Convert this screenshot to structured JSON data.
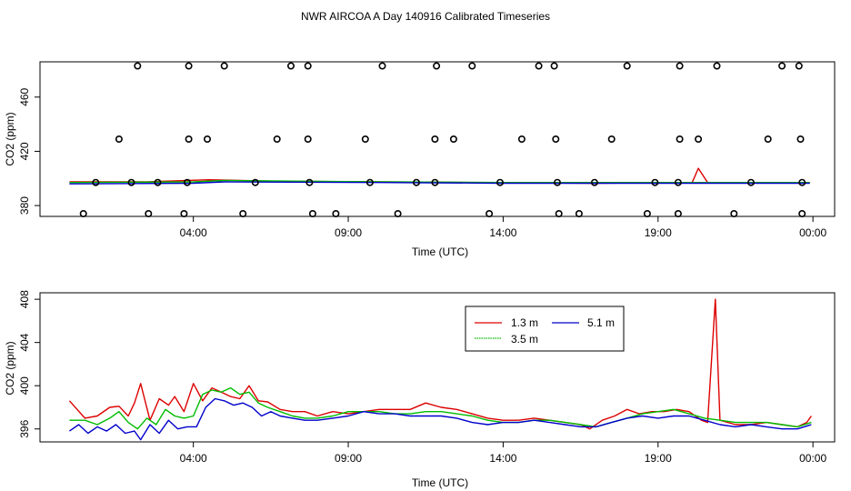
{
  "chart_data": {
    "title": "NWR AIRCOA A  Day 140916  Calibrated Timeseries",
    "series_colors": {
      "1.3 m": "#dd0000",
      "3.5 m": "#00bb00",
      "5.1 m": "#0000cc",
      "extra": "#9900aa",
      "cyan": "#00aaaa"
    },
    "x_tick_labels": [
      "04:00",
      "09:00",
      "14:00",
      "19:00",
      "00:00"
    ],
    "x_tick_hours": [
      4,
      9,
      14,
      19,
      24
    ],
    "panels": [
      {
        "type": "line+scatter",
        "xlabel": "Time (UTC)",
        "ylabel": "CO2 (ppm)",
        "xlim": [
          -0.95,
          24.7
        ],
        "ylim": [
          372,
          486
        ],
        "y_ticks": [
          380,
          420,
          460
        ],
        "calibration_points": {
          "levels": [
            374,
            397,
            429,
            483
          ],
          "hours_by_level": {
            "483": [
              2.2,
              3.85,
              5.0,
              7.15,
              7.7,
              10.1,
              11.85,
              13.0,
              15.15,
              15.65,
              18.0,
              19.7,
              20.9,
              23.0,
              23.55
            ],
            "429": [
              1.6,
              3.85,
              4.45,
              6.7,
              7.7,
              9.55,
              11.8,
              12.4,
              14.6,
              15.7,
              17.5,
              19.7,
              20.3,
              22.55,
              23.6
            ],
            "397": [
              0.85,
              2.0,
              2.85,
              3.8,
              6.0,
              7.75,
              9.7,
              11.2,
              11.8,
              13.9,
              15.75,
              16.95,
              18.9,
              19.65,
              22.0,
              23.65
            ],
            "374": [
              0.45,
              2.55,
              3.7,
              5.6,
              7.85,
              8.6,
              10.6,
              13.55,
              15.8,
              16.45,
              18.65,
              19.65,
              21.45,
              23.65
            ]
          }
        },
        "series": [
          {
            "name": "1.3 m",
            "x": [
              0,
              2.5,
              4.5,
              6.5,
              10,
              13,
              17,
              19.5,
              20.1,
              20.3,
              20.6,
              23.9
            ],
            "values": [
              397.5,
              397.5,
              399,
              398,
              397.5,
              397,
              396.5,
              397,
              397,
              407.5,
              397,
              397
            ]
          },
          {
            "name": "3.5 m",
            "x": [
              0,
              4,
              5,
              10,
              14,
              23.9
            ],
            "values": [
              397,
              397.5,
              398.5,
              397.5,
              397,
              397
            ]
          },
          {
            "name": "5.1 m",
            "x": [
              0,
              4,
              5,
              10,
              14,
              23.9
            ],
            "values": [
              396,
              396.5,
              397.5,
              397,
              396.5,
              396.5
            ]
          }
        ]
      },
      {
        "type": "line",
        "xlabel": "Time (UTC)",
        "ylabel": "CO2 (ppm)",
        "xlim": [
          -0.95,
          24.7
        ],
        "ylim": [
          394.8,
          408.6
        ],
        "y_ticks": [
          396,
          400,
          404,
          408
        ],
        "legend": {
          "position": "top-right",
          "entries": [
            "1.3 m",
            "3.5 m",
            "5.1 m"
          ]
        },
        "series": [
          {
            "name": "1.3 m",
            "x": [
              0,
              0.5,
              0.9,
              1.3,
              1.6,
              1.9,
              2.1,
              2.3,
              2.6,
              2.9,
              3.2,
              3.4,
              3.7,
              4.0,
              4.3,
              4.6,
              4.9,
              5.2,
              5.5,
              5.8,
              6.1,
              6.4,
              6.8,
              7.2,
              7.6,
              8.0,
              8.5,
              9.0,
              9.5,
              10.0,
              10.5,
              11.0,
              11.5,
              12.0,
              12.5,
              13.0,
              13.5,
              14.0,
              14.5,
              15.0,
              15.5,
              16.0,
              16.5,
              16.8,
              17.2,
              17.6,
              18.0,
              18.4,
              18.8,
              19.2,
              19.6,
              20.0,
              20.4,
              20.6,
              20.85,
              21.0,
              21.5,
              22.0,
              22.5,
              23.0,
              23.5,
              23.8,
              23.95
            ],
            "values": [
              398.6,
              397.0,
              397.2,
              398.0,
              398.1,
              397.2,
              398.4,
              400.2,
              396.8,
              398.8,
              398.2,
              399.0,
              397.6,
              400.2,
              398.6,
              399.8,
              399.4,
              399.0,
              398.8,
              400.0,
              398.6,
              398.5,
              397.8,
              397.6,
              397.6,
              397.2,
              397.6,
              397.4,
              397.6,
              397.8,
              397.8,
              397.8,
              398.4,
              398.0,
              397.8,
              397.4,
              397.0,
              396.8,
              396.8,
              397.0,
              396.8,
              396.6,
              396.4,
              396.0,
              396.8,
              397.2,
              397.8,
              397.4,
              397.6,
              397.6,
              397.8,
              397.6,
              396.8,
              396.6,
              408.0,
              396.8,
              396.4,
              396.4,
              396.6,
              396.4,
              396.2,
              396.6,
              397.2
            ]
          },
          {
            "name": "3.5 m",
            "x": [
              0,
              0.5,
              0.9,
              1.3,
              1.6,
              1.9,
              2.2,
              2.5,
              2.8,
              3.1,
              3.4,
              3.7,
              4.0,
              4.3,
              4.6,
              4.9,
              5.2,
              5.5,
              5.8,
              6.1,
              6.4,
              6.8,
              7.2,
              7.6,
              8.0,
              8.5,
              9.0,
              9.5,
              10.0,
              10.5,
              11.0,
              11.5,
              12.0,
              12.5,
              13.0,
              13.5,
              14.0,
              14.5,
              15.0,
              15.5,
              16.0,
              16.5,
              17.0,
              17.5,
              18.0,
              18.5,
              19.0,
              19.5,
              20.0,
              20.5,
              21.0,
              21.5,
              22.0,
              22.5,
              23.0,
              23.5,
              23.95
            ],
            "values": [
              396.8,
              396.8,
              396.4,
              397.0,
              397.6,
              396.6,
              396.0,
              397.0,
              396.4,
              397.8,
              397.2,
              397.0,
              397.2,
              399.2,
              399.6,
              399.4,
              399.8,
              399.2,
              399.4,
              398.4,
              398.0,
              397.6,
              397.2,
              397.0,
              397.0,
              397.2,
              397.6,
              397.6,
              397.6,
              397.4,
              397.4,
              397.6,
              397.6,
              397.4,
              397.2,
              396.8,
              396.6,
              396.6,
              396.8,
              396.8,
              396.6,
              396.4,
              396.2,
              396.6,
              397.0,
              397.4,
              397.6,
              397.8,
              397.4,
              397.0,
              396.8,
              396.6,
              396.6,
              396.6,
              396.4,
              396.2,
              396.6
            ]
          },
          {
            "name": "5.1 m",
            "x": [
              0,
              0.3,
              0.6,
              0.9,
              1.2,
              1.5,
              1.8,
              2.1,
              2.3,
              2.6,
              2.9,
              3.2,
              3.5,
              3.8,
              4.1,
              4.4,
              4.7,
              5.0,
              5.3,
              5.6,
              5.9,
              6.2,
              6.5,
              6.8,
              7.2,
              7.6,
              8.0,
              8.5,
              9.0,
              9.5,
              10.0,
              10.5,
              11.0,
              11.5,
              12.0,
              12.5,
              13.0,
              13.5,
              14.0,
              14.5,
              15.0,
              15.5,
              16.0,
              16.5,
              17.0,
              17.5,
              18.0,
              18.5,
              19.0,
              19.5,
              20.0,
              20.5,
              21.0,
              21.5,
              22.0,
              22.5,
              23.0,
              23.5,
              23.95
            ],
            "values": [
              395.8,
              396.4,
              395.6,
              396.2,
              395.8,
              396.4,
              395.6,
              395.8,
              395.0,
              396.4,
              395.6,
              396.8,
              396.0,
              396.2,
              396.2,
              398.0,
              398.8,
              398.6,
              398.2,
              398.4,
              398.0,
              397.2,
              397.6,
              397.2,
              397.0,
              396.8,
              396.8,
              397.0,
              397.2,
              397.6,
              397.4,
              397.4,
              397.2,
              397.2,
              397.2,
              397.0,
              396.6,
              396.4,
              396.6,
              396.6,
              396.8,
              396.6,
              396.4,
              396.2,
              396.2,
              396.6,
              397.0,
              397.2,
              397.0,
              397.2,
              397.2,
              396.8,
              396.4,
              396.2,
              396.4,
              396.2,
              396.0,
              396.0,
              396.4
            ]
          }
        ]
      }
    ]
  }
}
